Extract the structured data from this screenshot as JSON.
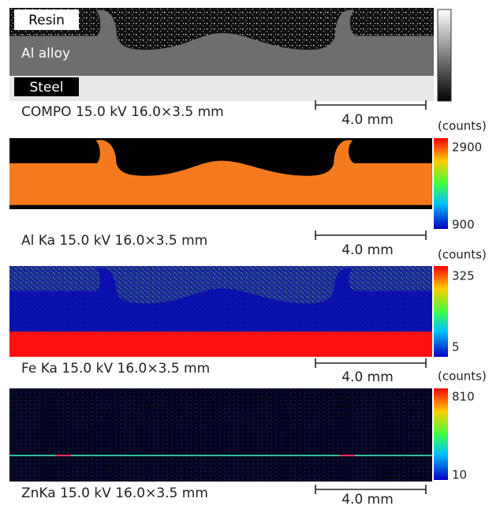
{
  "panels": [
    {
      "labels": [
        "Resin",
        "Al alloy",
        "Steel"
      ],
      "caption": "COMPO 15.0 kV 16.0×3.5 mm",
      "scale_bar": "4.0 mm"
    },
    {
      "caption": "Al Ka 15.0 kV 16.0×3.5 mm",
      "scale_bar": "4.0 mm",
      "colorbar": {
        "unit": "(counts)",
        "max": 2900,
        "min": 900
      }
    },
    {
      "caption": "Fe Ka 15.0 kV 16.0×3.5 mm",
      "scale_bar": "4.0 mm",
      "colorbar": {
        "unit": "(counts)",
        "max": 325,
        "min": 5
      }
    },
    {
      "caption": "ZnKa 15.0 kV 16.0×3.5 mm",
      "scale_bar": "4.0 mm",
      "colorbar": {
        "unit": "(counts)",
        "max": 810,
        "min": 10
      }
    }
  ]
}
